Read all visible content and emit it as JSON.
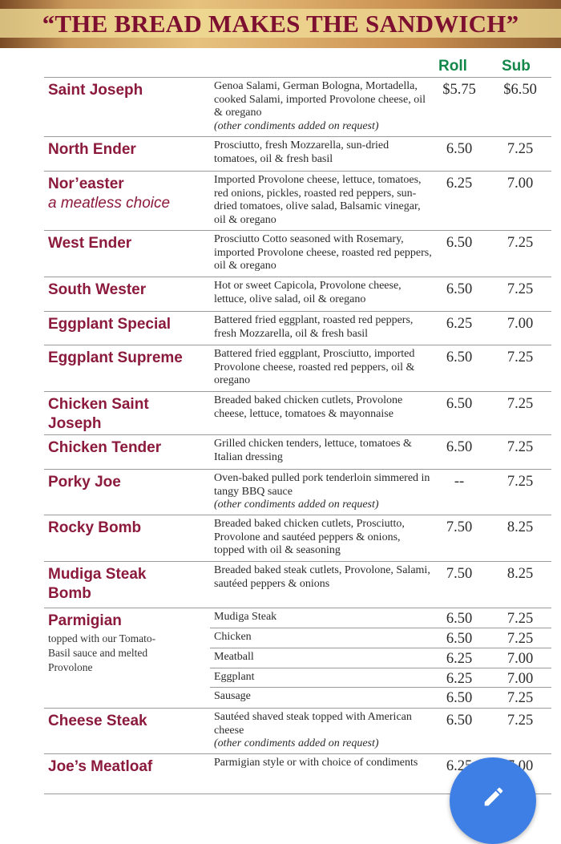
{
  "banner": {
    "title": "“THE BREAD MAKES THE SANDWICH”"
  },
  "columns": {
    "roll": "Roll",
    "sub": "Sub"
  },
  "colors": {
    "name": "#8b1a3c",
    "header": "#13874a",
    "banner_text": "#7d1030",
    "fab": "#3e7fe6"
  },
  "items": [
    {
      "name": "Saint Joseph",
      "desc": "Genoa Salami, German Bologna, Mortadella, cooked Salami, imported Provolone cheese, oil & oregano",
      "italic": "(other condiments added on request)",
      "roll": "$5.75",
      "sub": "$6.50"
    },
    {
      "name": "North Ender",
      "desc": "Prosciutto, fresh Mozzarella, sun-dried tomatoes, oil & fresh basil",
      "roll": "6.50",
      "sub": "7.25"
    },
    {
      "name": "Nor’easter",
      "subtitle": "a meatless choice",
      "desc": "Imported Provolone cheese, lettuce, tomatoes, red onions, pickles, roasted red peppers, sun-dried tomatoes, olive salad, Balsamic vinegar, oil & oregano",
      "roll": "6.25",
      "sub": "7.00"
    },
    {
      "name": "West Ender",
      "desc": "Prosciutto Cotto seasoned with Rosemary, imported Provolone cheese, roasted red peppers, oil & oregano",
      "roll": "6.50",
      "sub": "7.25"
    },
    {
      "name": "South Wester",
      "desc": "Hot or sweet Capicola, Provolone cheese, lettuce, olive salad, oil & oregano",
      "roll": "6.50",
      "sub": "7.25"
    },
    {
      "name": "Eggplant Special",
      "desc": "Battered fried eggplant, roasted red peppers, fresh Mozzarella, oil & fresh basil",
      "roll": "6.25",
      "sub": "7.00"
    },
    {
      "name": "Eggplant Supreme",
      "desc": "Battered fried eggplant, Prosciutto, imported Provolone cheese, roasted red peppers, oil & oregano",
      "roll": "6.50",
      "sub": "7.25"
    },
    {
      "name": "Chicken Saint Joseph",
      "desc": "Breaded baked chicken cutlets, Provolone cheese, lettuce, tomatoes & mayonnaise",
      "roll": "6.50",
      "sub": "7.25"
    },
    {
      "name": "Chicken Tender",
      "desc": "Grilled chicken tenders, lettuce, tomatoes & Italian dressing",
      "roll": "6.50",
      "sub": "7.25"
    },
    {
      "name": "Porky Joe",
      "desc": "Oven-baked pulled pork tenderloin simmered in tangy BBQ sauce",
      "italic": "(other condiments added on request)",
      "roll": "--",
      "sub": "7.25"
    },
    {
      "name": "Rocky Bomb",
      "desc": "Breaded baked chicken cutlets, Prosciutto, Provolone and sautéed peppers & onions, topped with oil & seasoning",
      "roll": "7.50",
      "sub": "8.25"
    },
    {
      "name": "Mudiga Steak Bomb",
      "desc": "Breaded baked steak cutlets, Provolone, Salami, sautéed peppers & onions",
      "roll": "7.50",
      "sub": "8.25"
    }
  ],
  "parmigian": {
    "name": "Parmigian",
    "note": "topped with our Tomato-Basil sauce and melted Provolone",
    "options": [
      {
        "label": "Mudiga Steak",
        "roll": "6.50",
        "sub": "7.25"
      },
      {
        "label": "Chicken",
        "roll": "6.50",
        "sub": "7.25"
      },
      {
        "label": "Meatball",
        "roll": "6.25",
        "sub": "7.00"
      },
      {
        "label": "Eggplant",
        "roll": "6.25",
        "sub": "7.00"
      },
      {
        "label": "Sausage",
        "roll": "6.50",
        "sub": "7.25"
      }
    ]
  },
  "items2": [
    {
      "name": "Cheese Steak",
      "desc": "Sautéed shaved steak topped with American cheese",
      "italic": "(other condiments added on request)",
      "roll": "6.50",
      "sub": "7.25"
    },
    {
      "name": "Joe’s Meatloaf",
      "desc": "Parmigian style or with choice of condiments",
      "roll": "6.25",
      "sub": "7.00"
    }
  ],
  "fab": {
    "icon": "pencil-icon"
  }
}
